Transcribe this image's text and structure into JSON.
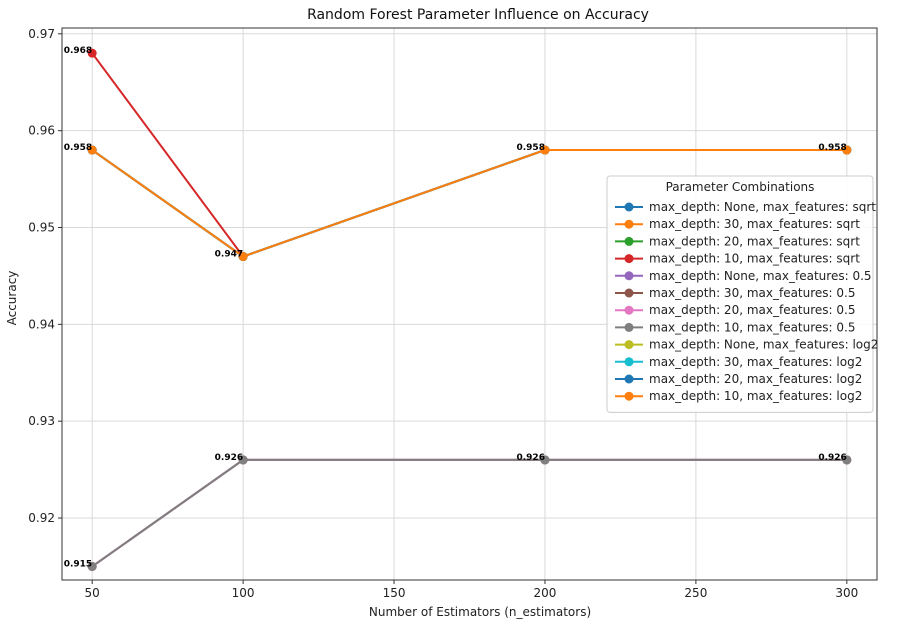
{
  "chart_data": {
    "type": "line",
    "title": "Random Forest Parameter Influence on Accuracy",
    "xlabel": "Number of Estimators (n_estimators)",
    "ylabel": "Accuracy",
    "xlim": [
      40,
      310
    ],
    "ylim": [
      0.9136,
      0.9706
    ],
    "xticks": [
      50,
      100,
      150,
      200,
      250,
      300
    ],
    "yticks": [
      0.92,
      0.93,
      0.94,
      0.95,
      0.96,
      0.97
    ],
    "grid": true,
    "legend_title": "Parameter Combinations",
    "legend_position": "center-right",
    "x": [
      50,
      100,
      200,
      300
    ],
    "series": [
      {
        "name": "max_depth: None, max_features: sqrt",
        "color": "#1f77b4",
        "values": [
          0.958,
          0.947,
          0.958,
          0.958
        ]
      },
      {
        "name": "max_depth: 30, max_features: sqrt",
        "color": "#ff7f0e",
        "values": [
          0.958,
          0.947,
          0.958,
          0.958
        ]
      },
      {
        "name": "max_depth: 20, max_features: sqrt",
        "color": "#2ca02c",
        "values": [
          0.958,
          0.947,
          0.958,
          0.958
        ]
      },
      {
        "name": "max_depth: 10, max_features: sqrt",
        "color": "#d62728",
        "values": [
          0.968,
          0.947,
          0.958,
          0.958
        ]
      },
      {
        "name": "max_depth: None, max_features: 0.5",
        "color": "#9467bd",
        "values": [
          0.915,
          0.926,
          0.926,
          0.926
        ]
      },
      {
        "name": "max_depth: 30, max_features: 0.5",
        "color": "#8c564b",
        "values": [
          0.915,
          0.926,
          0.926,
          0.926
        ]
      },
      {
        "name": "max_depth: 20, max_features: 0.5",
        "color": "#e377c2",
        "values": [
          0.915,
          0.926,
          0.926,
          0.926
        ]
      },
      {
        "name": "max_depth: 10, max_features: 0.5",
        "color": "#7f7f7f",
        "values": [
          0.915,
          0.926,
          0.926,
          0.926
        ]
      },
      {
        "name": "max_depth: None, max_features: log2",
        "color": "#bcbd22",
        "values": [
          0.958,
          0.947,
          0.958,
          0.958
        ]
      },
      {
        "name": "max_depth: 30, max_features: log2",
        "color": "#17becf",
        "values": [
          0.958,
          0.947,
          0.958,
          0.958
        ]
      },
      {
        "name": "max_depth: 20, max_features: log2",
        "color": "#1f77b4",
        "values": [
          0.958,
          0.947,
          0.958,
          0.958
        ]
      },
      {
        "name": "max_depth: 10, max_features: log2",
        "color": "#ff7f0e",
        "values": [
          0.958,
          0.947,
          0.958,
          0.958
        ]
      }
    ],
    "data_labels": [
      {
        "x": 50,
        "y": 0.968,
        "text": "0.968"
      },
      {
        "x": 50,
        "y": 0.958,
        "text": "0.958"
      },
      {
        "x": 50,
        "y": 0.915,
        "text": "0.915"
      },
      {
        "x": 100,
        "y": 0.947,
        "text": "0.947"
      },
      {
        "x": 100,
        "y": 0.926,
        "text": "0.926"
      },
      {
        "x": 200,
        "y": 0.958,
        "text": "0.958"
      },
      {
        "x": 200,
        "y": 0.926,
        "text": "0.926"
      },
      {
        "x": 300,
        "y": 0.958,
        "text": "0.958"
      },
      {
        "x": 300,
        "y": 0.926,
        "text": "0.926"
      }
    ]
  }
}
